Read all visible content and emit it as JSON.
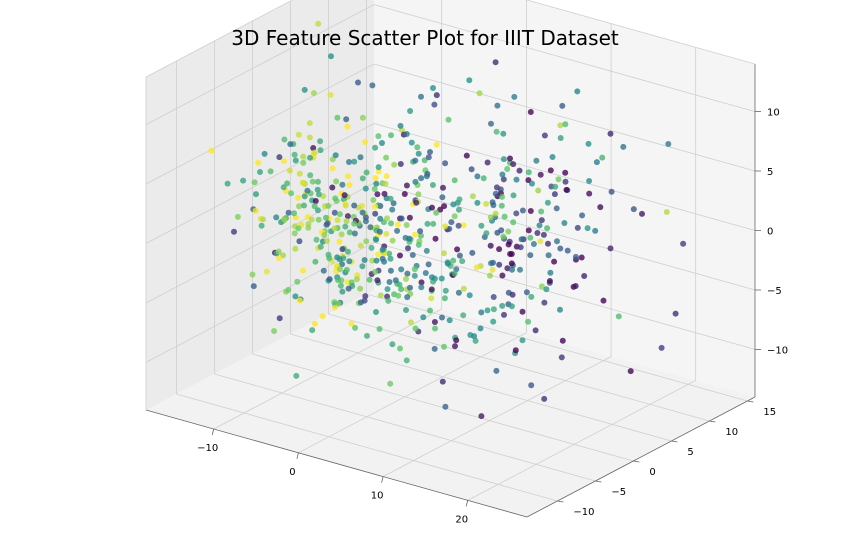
{
  "chart_data": {
    "type": "scatter",
    "title": "3D Feature Scatter Plot for IIIT Dataset",
    "xlabel": "",
    "ylabel": "",
    "zlabel": "",
    "x_ticks": [
      -10,
      0,
      10,
      20
    ],
    "y_ticks": [
      -10,
      -5,
      0,
      5,
      10,
      15
    ],
    "z_ticks": [
      -10,
      -5,
      0,
      5,
      10
    ],
    "x_tick_labels": [
      "−10",
      "0",
      "10",
      "20"
    ],
    "y_tick_labels": [
      "−10",
      "−5",
      "0",
      "5",
      "10",
      "15"
    ],
    "z_tick_labels": [
      "−10",
      "−5",
      "0",
      "5",
      "10"
    ],
    "xlim": [
      -18,
      27
    ],
    "ylim": [
      -14,
      16
    ],
    "zlim": [
      -14,
      14
    ],
    "grid": true,
    "colormap": "viridis",
    "colormap_stops": [
      "#440154",
      "#3b528b",
      "#21918c",
      "#5ec962",
      "#fde725"
    ],
    "pane_color": "#f2f2f2",
    "point_count": 620
  }
}
